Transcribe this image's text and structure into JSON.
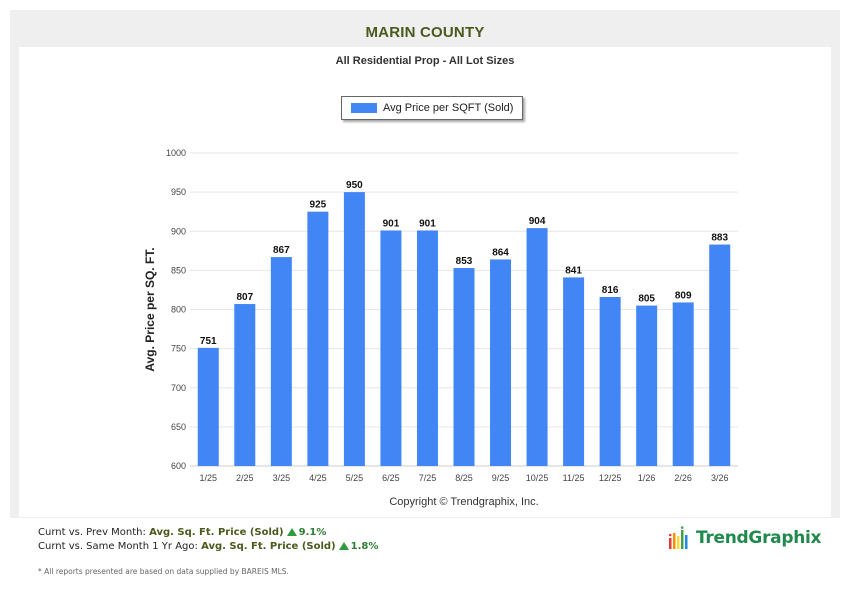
{
  "header": {
    "county_title": "MARIN COUNTY",
    "subtitle": "All Residential Prop - All Lot Sizes"
  },
  "legend": {
    "label": "Avg Price per SQFT (Sold)"
  },
  "copyright": "Copyright © Trendgraphix, Inc.",
  "colors": {
    "bar": "#4285f4",
    "title": "#4a5a1c",
    "up": "#2e9a3c"
  },
  "chart_data": {
    "type": "bar",
    "title": "MARIN COUNTY",
    "subtitle": "All Residential Prop - All Lot Sizes",
    "categories": [
      "1/25",
      "2/25",
      "3/25",
      "4/25",
      "5/25",
      "6/25",
      "7/25",
      "8/25",
      "9/25",
      "10/25",
      "11/25",
      "12/25",
      "1/26",
      "2/26",
      "3/26"
    ],
    "series": [
      {
        "name": "Avg Price per SQFT (Sold)",
        "values": [
          751,
          807,
          867,
          925,
          950,
          901,
          901,
          853,
          864,
          904,
          841,
          816,
          805,
          809,
          883
        ]
      }
    ],
    "xlabel": "",
    "ylabel": "Avg. Price per SQ. FT.",
    "ylim": [
      600,
      1000
    ],
    "yticks": [
      600,
      650,
      700,
      750,
      800,
      850,
      900,
      950,
      1000
    ],
    "grid": true,
    "legend_position": "top-center",
    "data_labels": true
  },
  "footer": {
    "line1_prefix": "Curnt vs. Prev Month:",
    "line1_metric": "Avg. Sq. Ft. Price (Sold)",
    "line1_change": "9.1%",
    "line2_prefix": "Curnt vs. Same Month 1 Yr Ago:",
    "line2_metric": "Avg. Sq. Ft. Price (Sold)",
    "line2_change": "1.8%",
    "disclaimer": "* All reports presented are based on data supplied by BAREIS MLS."
  },
  "brand": {
    "name": "TrendGraphix",
    "icon": "bar-chart-logo-icon"
  }
}
